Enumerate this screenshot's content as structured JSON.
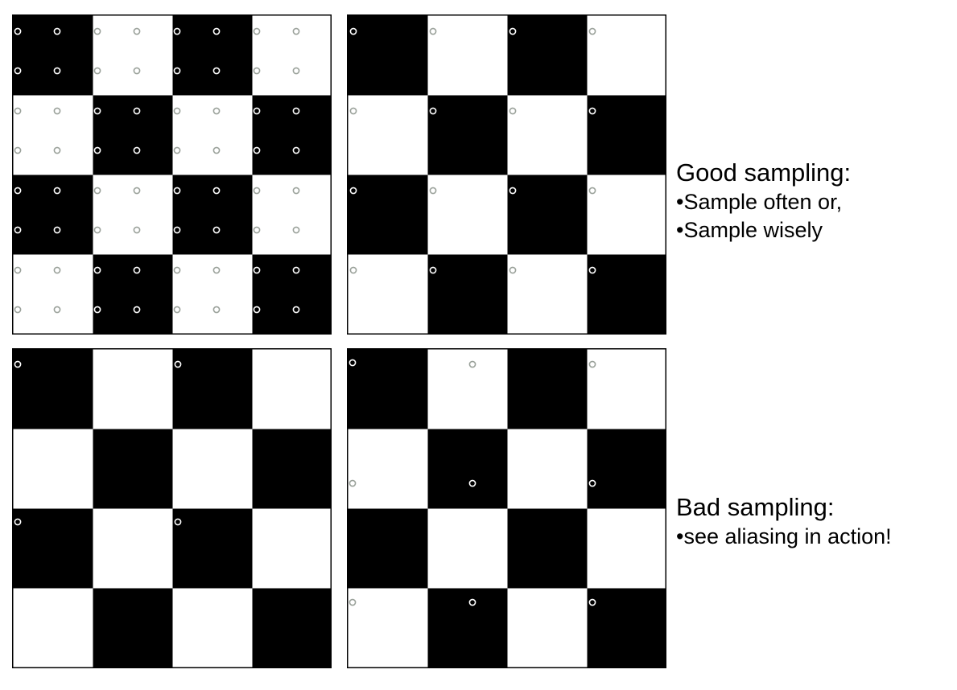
{
  "colors": {
    "dark_square": "#000000",
    "light_square": "#ffffff",
    "sample_marker": "#9aa19a"
  },
  "good": {
    "title": "Good sampling:",
    "bullets": [
      "•Sample often or,",
      "•Sample wisely"
    ]
  },
  "bad": {
    "title": "Bad sampling:",
    "bullets": [
      "•see aliasing in action!"
    ]
  },
  "checkerboard": {
    "rows": 4,
    "cols": 4,
    "top_left_dark": true
  },
  "panels": [
    {
      "id": "tl",
      "samples_per_square": 2
    },
    {
      "id": "tr",
      "samples_per_square": 1
    },
    {
      "id": "bl",
      "samples_per_square": 0.5
    },
    {
      "id": "br",
      "samples_per_square": 0.75
    }
  ]
}
